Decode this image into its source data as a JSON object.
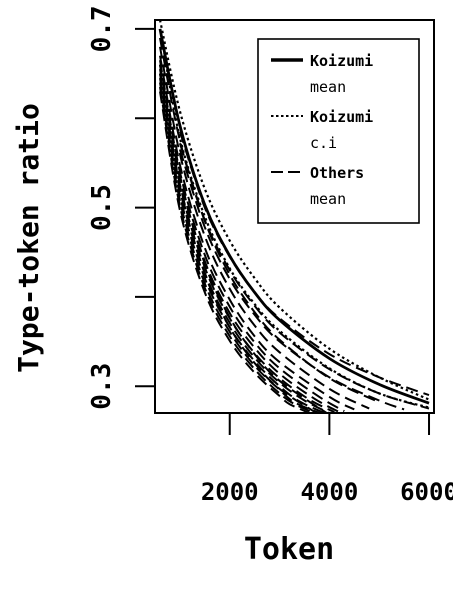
{
  "chart_data": {
    "type": "line",
    "title": "",
    "xlabel": "Token",
    "ylabel": "Type-token ratio",
    "xlim": [
      500,
      6100
    ],
    "ylim": [
      0.27,
      0.71
    ],
    "x_ticks": [
      2000,
      4000,
      6000
    ],
    "x_tick_labels": [
      "2000",
      "4000",
      "6000"
    ],
    "y_ticks": [
      0.3,
      0.4,
      0.5,
      0.6,
      0.7
    ],
    "y_tick_labels": [
      "0.3",
      "",
      "0.5",
      "",
      "0.7"
    ],
    "legend_position": "top-right",
    "legend": [
      {
        "style": "solid",
        "line1": "Koizumi",
        "line2": "mean"
      },
      {
        "style": "dotted",
        "line1": "Koizumi",
        "line2": "c.i"
      },
      {
        "style": "dashed",
        "line1": "Others",
        "line2": "mean"
      }
    ],
    "series": [
      {
        "name": "Koizumi mean",
        "style": "solid",
        "points": [
          [
            600,
            0.7
          ],
          [
            1000,
            0.592
          ],
          [
            1500,
            0.503
          ],
          [
            2000,
            0.446
          ],
          [
            2500,
            0.405
          ],
          [
            3000,
            0.374
          ],
          [
            4000,
            0.331
          ],
          [
            5000,
            0.302
          ],
          [
            6000,
            0.281
          ]
        ]
      },
      {
        "name": "Koizumi c.i",
        "style": "dotted",
        "points": [
          [
            600,
            0.71
          ],
          [
            1000,
            0.608
          ],
          [
            1500,
            0.521
          ],
          [
            2000,
            0.463
          ],
          [
            2500,
            0.421
          ],
          [
            3000,
            0.388
          ],
          [
            4000,
            0.342
          ],
          [
            5000,
            0.31
          ],
          [
            6000,
            0.285
          ]
        ]
      },
      {
        "name": "Koizumi c.i",
        "style": "dotted",
        "points": [
          [
            650,
            0.685
          ],
          [
            1000,
            0.578
          ],
          [
            1500,
            0.49
          ],
          [
            2000,
            0.432
          ],
          [
            2500,
            0.392
          ],
          [
            3000,
            0.362
          ],
          [
            4000,
            0.32
          ],
          [
            5000,
            0.292
          ],
          [
            6000,
            0.276
          ]
        ]
      },
      {
        "name": "",
        "style": "dashed",
        "points": [
          [
            600,
            0.69
          ],
          [
            1000,
            0.575
          ],
          [
            1500,
            0.485
          ],
          [
            2000,
            0.425
          ],
          [
            2500,
            0.383
          ],
          [
            3000,
            0.352
          ],
          [
            4000,
            0.309
          ],
          [
            5000,
            0.282
          ]
        ]
      },
      {
        "name": "",
        "style": "dashed",
        "points": [
          [
            600,
            0.68
          ],
          [
            1000,
            0.56
          ],
          [
            1500,
            0.468
          ],
          [
            2000,
            0.409
          ],
          [
            2500,
            0.368
          ],
          [
            3000,
            0.338
          ],
          [
            4000,
            0.297
          ],
          [
            4800,
            0.275
          ]
        ]
      },
      {
        "name": "",
        "style": "dashed",
        "points": [
          [
            600,
            0.67
          ],
          [
            1000,
            0.548
          ],
          [
            1500,
            0.455
          ],
          [
            2000,
            0.397
          ],
          [
            2500,
            0.356
          ],
          [
            3000,
            0.327
          ],
          [
            4000,
            0.288
          ],
          [
            4500,
            0.274
          ]
        ]
      },
      {
        "name": "",
        "style": "dashed",
        "points": [
          [
            600,
            0.665
          ],
          [
            1000,
            0.54
          ],
          [
            1500,
            0.447
          ],
          [
            2000,
            0.389
          ],
          [
            2500,
            0.349
          ],
          [
            3000,
            0.32
          ],
          [
            3800,
            0.288
          ],
          [
            4300,
            0.272
          ]
        ]
      },
      {
        "name": "",
        "style": "dashed",
        "points": [
          [
            600,
            0.66
          ],
          [
            1000,
            0.533
          ],
          [
            1500,
            0.44
          ],
          [
            2000,
            0.382
          ],
          [
            2500,
            0.343
          ],
          [
            3000,
            0.314
          ],
          [
            3700,
            0.286
          ],
          [
            4200,
            0.271
          ]
        ]
      },
      {
        "name": "",
        "style": "dashed",
        "points": [
          [
            600,
            0.655
          ],
          [
            1000,
            0.526
          ],
          [
            1500,
            0.433
          ],
          [
            2000,
            0.376
          ],
          [
            2500,
            0.337
          ],
          [
            3000,
            0.309
          ],
          [
            3600,
            0.285
          ],
          [
            4100,
            0.271
          ]
        ]
      },
      {
        "name": "",
        "style": "dashed",
        "points": [
          [
            600,
            0.65
          ],
          [
            1000,
            0.52
          ],
          [
            1500,
            0.427
          ],
          [
            2000,
            0.371
          ],
          [
            2500,
            0.332
          ],
          [
            3000,
            0.304
          ],
          [
            3500,
            0.284
          ],
          [
            4000,
            0.27
          ]
        ]
      },
      {
        "name": "",
        "style": "dashed",
        "points": [
          [
            600,
            0.645
          ],
          [
            1000,
            0.514
          ],
          [
            1500,
            0.421
          ],
          [
            2000,
            0.366
          ],
          [
            2500,
            0.328
          ],
          [
            3000,
            0.3
          ],
          [
            3400,
            0.283
          ],
          [
            3900,
            0.27
          ]
        ]
      },
      {
        "name": "",
        "style": "dashed",
        "points": [
          [
            600,
            0.64
          ],
          [
            1000,
            0.508
          ],
          [
            1500,
            0.415
          ],
          [
            2000,
            0.361
          ],
          [
            2500,
            0.323
          ],
          [
            3000,
            0.296
          ],
          [
            3300,
            0.282
          ],
          [
            3800,
            0.27
          ]
        ]
      },
      {
        "name": "",
        "style": "dashed",
        "points": [
          [
            600,
            0.635
          ],
          [
            1000,
            0.502
          ],
          [
            1500,
            0.41
          ],
          [
            2000,
            0.356
          ],
          [
            2500,
            0.319
          ],
          [
            3000,
            0.292
          ],
          [
            3300,
            0.28
          ],
          [
            3700,
            0.27
          ]
        ]
      },
      {
        "name": "",
        "style": "dashed",
        "points": [
          [
            600,
            0.63
          ],
          [
            1000,
            0.497
          ],
          [
            1500,
            0.405
          ],
          [
            2000,
            0.351
          ],
          [
            2500,
            0.315
          ],
          [
            3000,
            0.289
          ],
          [
            3200,
            0.28
          ],
          [
            3600,
            0.27
          ]
        ]
      },
      {
        "name": "",
        "style": "dashed",
        "points": [
          [
            600,
            0.66
          ],
          [
            1000,
            0.536
          ],
          [
            1500,
            0.437
          ],
          [
            2000,
            0.377
          ],
          [
            2500,
            0.336
          ],
          [
            3000,
            0.306
          ],
          [
            4000,
            0.268
          ]
        ]
      },
      {
        "name": "",
        "style": "dashed",
        "points": [
          [
            600,
            0.65
          ],
          [
            1000,
            0.524
          ],
          [
            1500,
            0.426
          ],
          [
            2000,
            0.366
          ],
          [
            2500,
            0.326
          ],
          [
            3000,
            0.297
          ],
          [
            3800,
            0.268
          ]
        ]
      },
      {
        "name": "",
        "style": "dashed",
        "points": [
          [
            1000,
            0.585
          ],
          [
            1500,
            0.5
          ],
          [
            2000,
            0.445
          ],
          [
            2500,
            0.405
          ],
          [
            3000,
            0.376
          ],
          [
            4000,
            0.336
          ],
          [
            5000,
            0.31
          ],
          [
            6000,
            0.29
          ]
        ]
      },
      {
        "name": "",
        "style": "dashed",
        "points": [
          [
            1000,
            0.572
          ],
          [
            1500,
            0.486
          ],
          [
            2000,
            0.43
          ],
          [
            2500,
            0.39
          ],
          [
            3000,
            0.36
          ],
          [
            4000,
            0.319
          ],
          [
            5000,
            0.292
          ],
          [
            6000,
            0.275
          ]
        ]
      },
      {
        "name": "",
        "style": "dashed",
        "points": [
          [
            1000,
            0.565
          ],
          [
            1500,
            0.478
          ],
          [
            2000,
            0.42
          ],
          [
            2500,
            0.38
          ],
          [
            3000,
            0.35
          ],
          [
            4000,
            0.31
          ],
          [
            5000,
            0.284
          ],
          [
            5500,
            0.274
          ]
        ]
      }
    ]
  }
}
